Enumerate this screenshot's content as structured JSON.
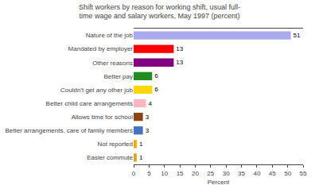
{
  "chart_data": {
    "type": "bar",
    "orientation": "horizontal",
    "title": "Shift workers by reason for working shift, usual full-\ntime wage and salary workers, May 1997 (percent)",
    "categories": [
      "Easier commute",
      "Not reported",
      "Better arrangements, care of family members",
      "Allows time for school",
      "Better child care arrangements",
      "Couldn't get any other job",
      "Better pay",
      "Other reasons",
      "Mandated by employer",
      "Nature of the job"
    ],
    "values": [
      1,
      1,
      3,
      3,
      4,
      6,
      6,
      13,
      13,
      51
    ],
    "colors": [
      "#DAA520",
      "#FFA500",
      "#4472C4",
      "#8B4513",
      "#FFB6C1",
      "#FFD700",
      "#228B22",
      "#800080",
      "#FF0000",
      "#AAAAEE"
    ],
    "xlabel": "Percent",
    "xlim": [
      0,
      55
    ],
    "xticks": [
      0,
      5,
      10,
      15,
      20,
      25,
      30,
      35,
      40,
      45,
      50,
      55
    ],
    "grid": false,
    "data_labels": true
  }
}
